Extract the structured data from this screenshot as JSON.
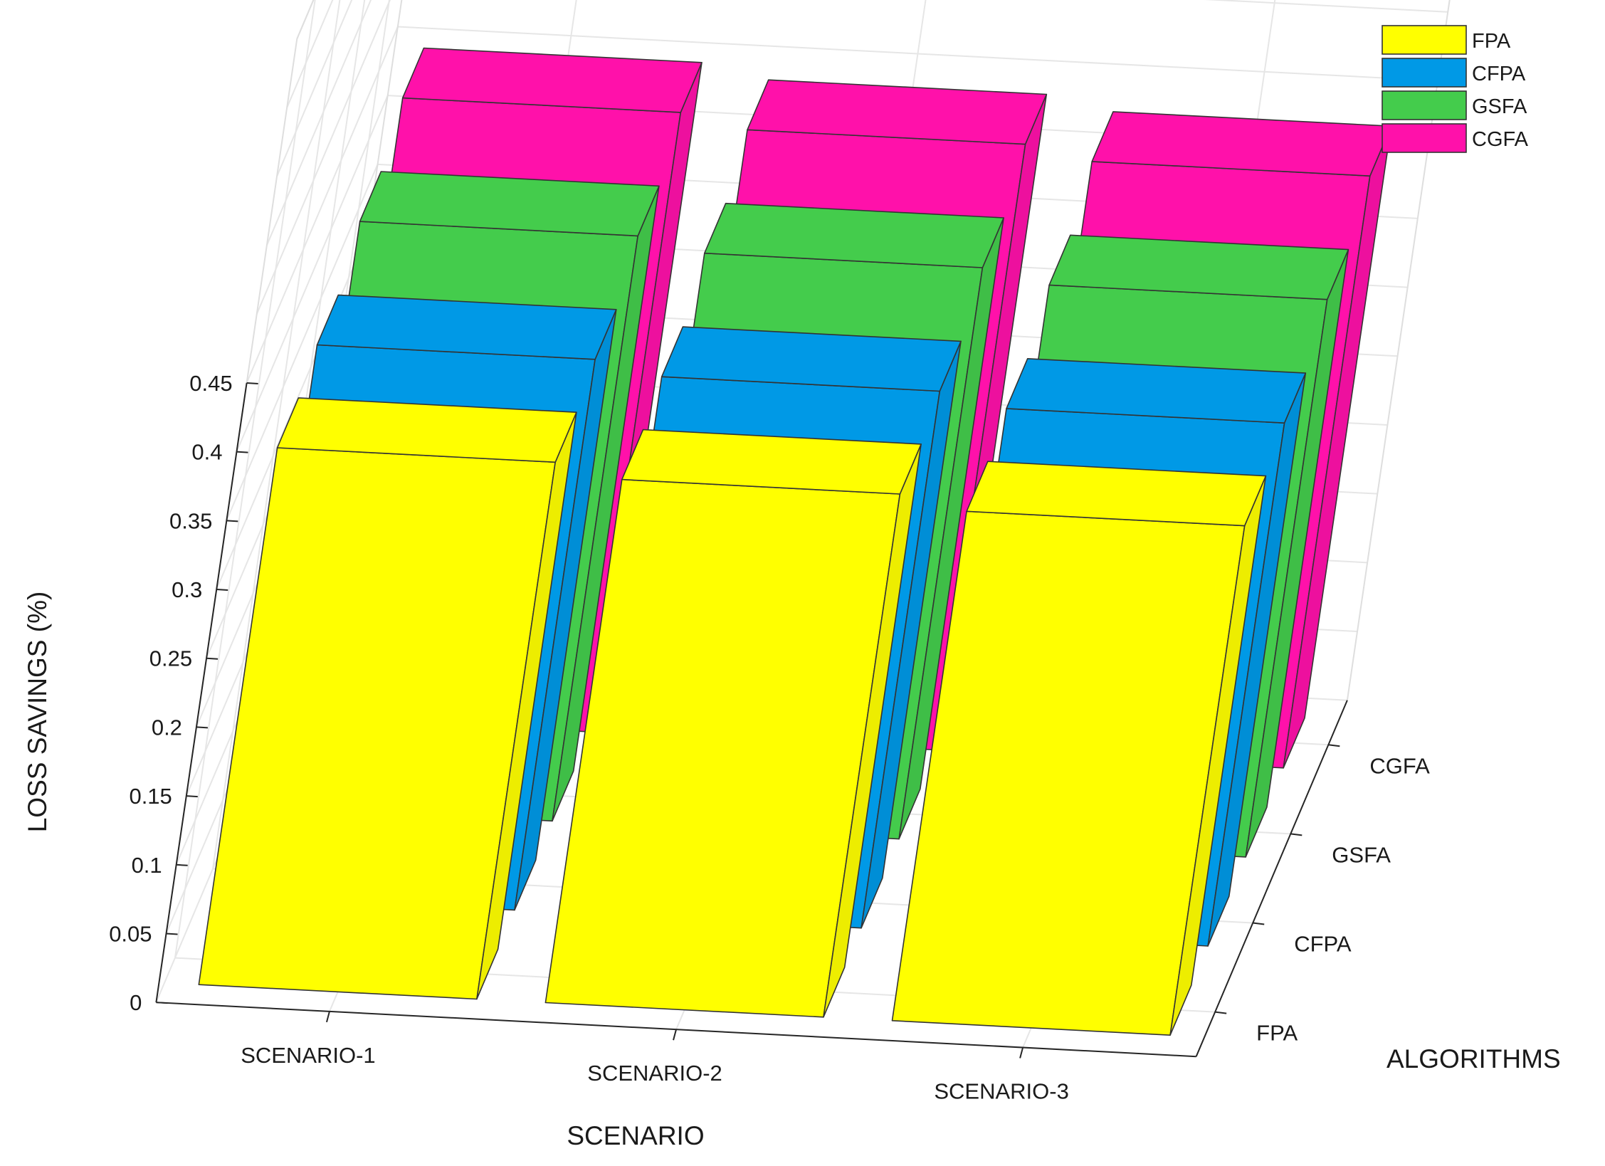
{
  "chart_data": {
    "type": "bar",
    "subtype": "3d-grouped-bar",
    "title": "",
    "xlabel": "SCENARIO",
    "ylabel": "LOSS SAVINGS (%)",
    "zlabel": "ALGORITHMS",
    "categories": [
      "SCENARIO-1",
      "SCENARIO-2",
      "SCENARIO-3"
    ],
    "algorithm_ticks": [
      "FPA",
      "CFPA",
      "GSFA",
      "CGFA"
    ],
    "y_ticks": [
      "0",
      "0.05",
      "0.1",
      "0.15",
      "0.2",
      "0.25",
      "0.3",
      "0.35",
      "0.4",
      "0.45"
    ],
    "ylim": [
      0,
      0.45
    ],
    "grid": true,
    "legend_position": "top-right",
    "series": [
      {
        "name": "FPA",
        "color": "#ffff00",
        "values": [
          0.39,
          0.38,
          0.37
        ]
      },
      {
        "name": "CFPA",
        "color": "#0099e6",
        "values": [
          0.4,
          0.39,
          0.38
        ]
      },
      {
        "name": "GSFA",
        "color": "#44cc4c",
        "values": [
          0.425,
          0.415,
          0.405
        ]
      },
      {
        "name": "CGFA",
        "color": "#ff11aa",
        "values": [
          0.45,
          0.44,
          0.43
        ]
      }
    ]
  }
}
